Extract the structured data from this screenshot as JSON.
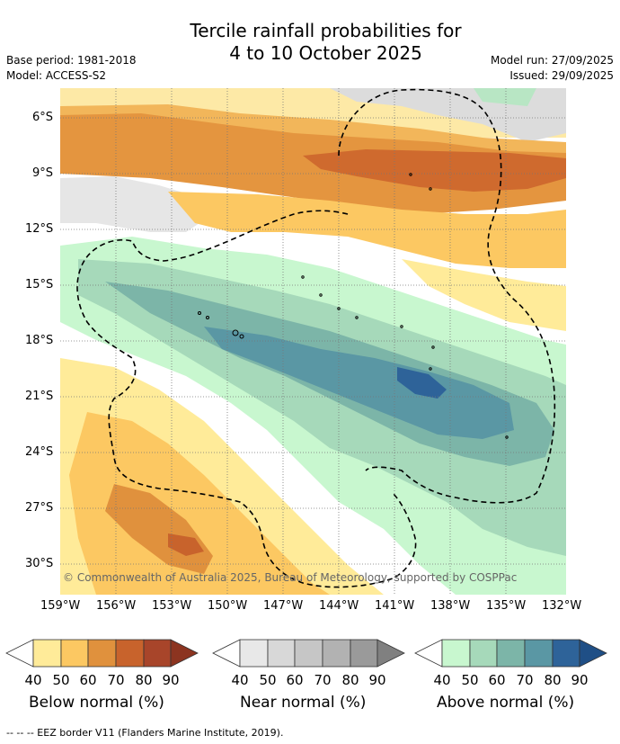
{
  "header": {
    "title_line1": "Tercile rainfall probabilities for",
    "title_line2": "4 to 10 October 2025",
    "base_period": "Base period: 1981-2018",
    "model": "Model: ACCESS-S2",
    "model_run": "Model run: 27/09/2025",
    "issued": "Issued: 29/09/2025"
  },
  "map": {
    "latitude_labels": [
      "6°S",
      "9°S",
      "12°S",
      "15°S",
      "18°S",
      "21°S",
      "24°S",
      "27°S",
      "30°S"
    ],
    "longitude_labels": [
      "159°W",
      "156°W",
      "153°W",
      "150°W",
      "147°W",
      "144°W",
      "141°W",
      "138°W",
      "135°W",
      "132°W"
    ],
    "copyright": "© Commonwealth of Australia 2025, Bureau of Meteorology, supported by COSPPac"
  },
  "legend": {
    "ticks": [
      "40",
      "50",
      "60",
      "70",
      "80",
      "90"
    ],
    "below": {
      "label": "Below normal (%)",
      "colors": [
        "#ffeb99",
        "#fcc862",
        "#e0913d",
        "#c8632c",
        "#a8452a"
      ]
    },
    "near": {
      "label": "Near normal (%)",
      "colors": [
        "#e8e8e8",
        "#d8d8d8",
        "#c6c6c6",
        "#b2b2b2",
        "#9a9a9a"
      ]
    },
    "above": {
      "label": "Above normal (%)",
      "colors": [
        "#c8f7cf",
        "#a6d9ba",
        "#7cb5a8",
        "#5a97a4",
        "#2e6399"
      ]
    }
  },
  "footer": {
    "eez_note": "--  --  -- EEZ border V11 (Flanders Marine Institute, 2019)."
  }
}
